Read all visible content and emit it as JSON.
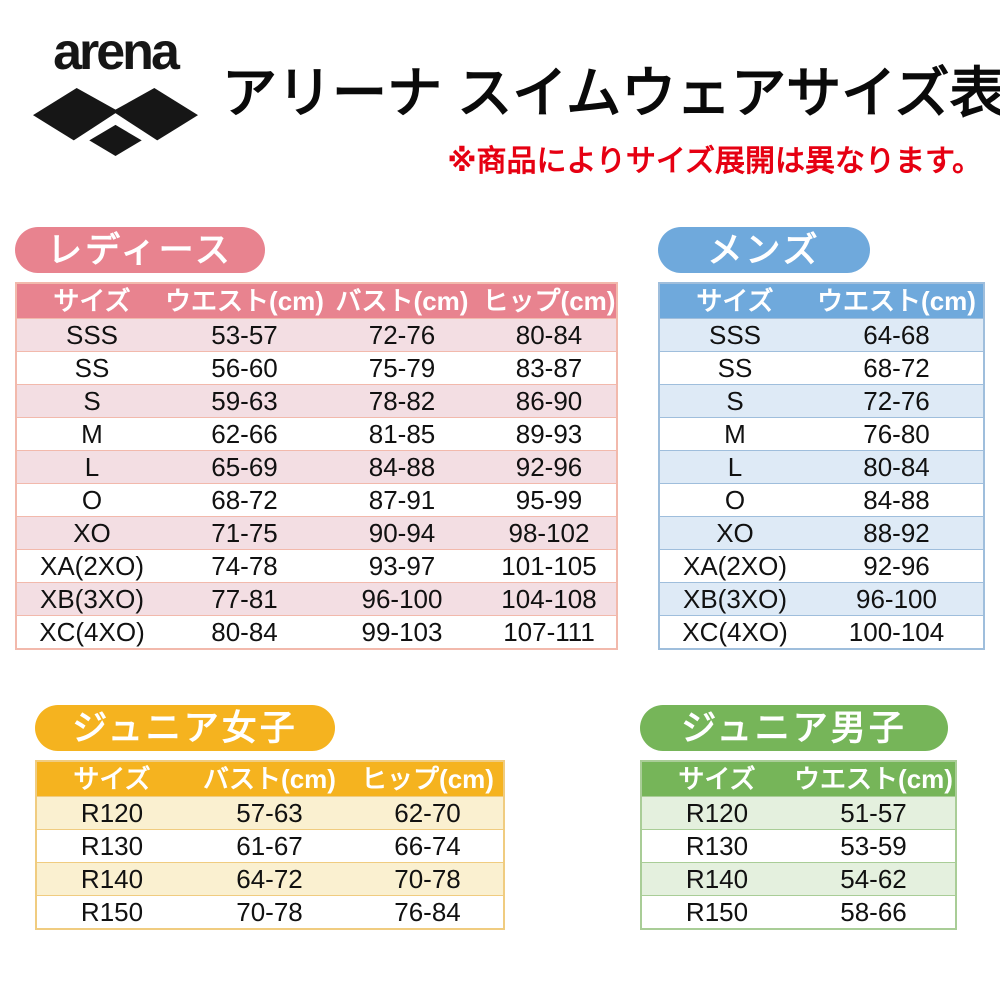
{
  "header": {
    "brand": "arena",
    "title": "アリーナ スイムウェアサイズ表",
    "note": "※商品によりサイズ展開は異なります。"
  },
  "colors": {
    "ladies": "#e8838f",
    "mens": "#6fa9dc",
    "junior_girls": "#f5b31f",
    "junior_boys": "#76b559",
    "note_red": "#e60012"
  },
  "tables": [
    {
      "id": "ladies",
      "badge": "レディース",
      "columns": [
        "サイズ",
        "ウエスト(cm)",
        "バスト(cm)",
        "ヒップ(cm)"
      ],
      "rows": [
        [
          "SSS",
          "53-57",
          "72-76",
          "80-84"
        ],
        [
          "SS",
          "56-60",
          "75-79",
          "83-87"
        ],
        [
          "S",
          "59-63",
          "78-82",
          "86-90"
        ],
        [
          "M",
          "62-66",
          "81-85",
          "89-93"
        ],
        [
          "L",
          "65-69",
          "84-88",
          "92-96"
        ],
        [
          "O",
          "68-72",
          "87-91",
          "95-99"
        ],
        [
          "XO",
          "71-75",
          "90-94",
          "98-102"
        ],
        [
          "XA(2XO)",
          "74-78",
          "93-97",
          "101-105"
        ],
        [
          "XB(3XO)",
          "77-81",
          "96-100",
          "104-108"
        ],
        [
          "XC(4XO)",
          "80-84",
          "99-103",
          "107-111"
        ]
      ]
    },
    {
      "id": "mens",
      "badge": "メンズ",
      "columns": [
        "サイズ",
        "ウエスト(cm)"
      ],
      "rows": [
        [
          "SSS",
          "64-68"
        ],
        [
          "SS",
          "68-72"
        ],
        [
          "S",
          "72-76"
        ],
        [
          "M",
          "76-80"
        ],
        [
          "L",
          "80-84"
        ],
        [
          "O",
          "84-88"
        ],
        [
          "XO",
          "88-92"
        ],
        [
          "XA(2XO)",
          "92-96"
        ],
        [
          "XB(3XO)",
          "96-100"
        ],
        [
          "XC(4XO)",
          "100-104"
        ]
      ]
    },
    {
      "id": "junior-girls",
      "badge": "ジュニア女子",
      "columns": [
        "サイズ",
        "バスト(cm)",
        "ヒップ(cm)"
      ],
      "rows": [
        [
          "R120",
          "57-63",
          "62-70"
        ],
        [
          "R130",
          "61-67",
          "66-74"
        ],
        [
          "R140",
          "64-72",
          "70-78"
        ],
        [
          "R150",
          "70-78",
          "76-84"
        ]
      ]
    },
    {
      "id": "junior-boys",
      "badge": "ジュニア男子",
      "columns": [
        "サイズ",
        "ウエスト(cm)"
      ],
      "rows": [
        [
          "R120",
          "51-57"
        ],
        [
          "R130",
          "53-59"
        ],
        [
          "R140",
          "54-62"
        ],
        [
          "R150",
          "58-66"
        ]
      ]
    }
  ]
}
